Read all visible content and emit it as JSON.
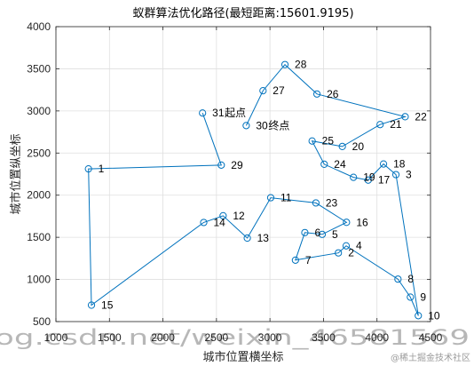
{
  "chart_data": {
    "type": "line",
    "title": "蚁群算法优化路径(最短距离:15601.9195)",
    "xlabel": "城市位置横坐标",
    "ylabel": "城市位置纵坐标",
    "xlim": [
      1000,
      4500
    ],
    "ylim": [
      500,
      4000
    ],
    "xticks": [
      1000,
      1500,
      2000,
      2500,
      3000,
      3500,
      4000,
      4500
    ],
    "yticks": [
      500,
      1000,
      1500,
      2000,
      2500,
      3000,
      3500,
      4000
    ],
    "grid": true,
    "line_color": "#0072BD",
    "marker": "circle",
    "cities": [
      {
        "id": "1",
        "x": 1304,
        "y": 2312
      },
      {
        "id": "2",
        "x": 3639,
        "y": 1315
      },
      {
        "id": "3",
        "x": 4177,
        "y": 2244
      },
      {
        "id": "4",
        "x": 3712,
        "y": 1399
      },
      {
        "id": "5",
        "x": 3488,
        "y": 1535
      },
      {
        "id": "6",
        "x": 3326,
        "y": 1556
      },
      {
        "id": "7",
        "x": 3238,
        "y": 1229
      },
      {
        "id": "8",
        "x": 4196,
        "y": 1004
      },
      {
        "id": "9",
        "x": 4312,
        "y": 790
      },
      {
        "id": "10",
        "x": 4386,
        "y": 570
      },
      {
        "id": "11",
        "x": 3007,
        "y": 1970
      },
      {
        "id": "12",
        "x": 2562,
        "y": 1756
      },
      {
        "id": "13",
        "x": 2788,
        "y": 1491
      },
      {
        "id": "14",
        "x": 2381,
        "y": 1676
      },
      {
        "id": "15",
        "x": 1332,
        "y": 695
      },
      {
        "id": "16",
        "x": 3715,
        "y": 1678
      },
      {
        "id": "17",
        "x": 3918,
        "y": 2179
      },
      {
        "id": "18",
        "x": 4061,
        "y": 2370
      },
      {
        "id": "19",
        "x": 3780,
        "y": 2212
      },
      {
        "id": "20",
        "x": 3676,
        "y": 2578
      },
      {
        "id": "21",
        "x": 4029,
        "y": 2838
      },
      {
        "id": "22",
        "x": 4263,
        "y": 2931
      },
      {
        "id": "23",
        "x": 3429,
        "y": 1908
      },
      {
        "id": "24",
        "x": 3507,
        "y": 2367
      },
      {
        "id": "25",
        "x": 3394,
        "y": 2643
      },
      {
        "id": "26",
        "x": 3439,
        "y": 3201
      },
      {
        "id": "27",
        "x": 2935,
        "y": 3240
      },
      {
        "id": "28",
        "x": 3140,
        "y": 3550
      },
      {
        "id": "29",
        "x": 2545,
        "y": 2357
      },
      {
        "id": "30",
        "x": 2778,
        "y": 2826
      },
      {
        "id": "31",
        "x": 2370,
        "y": 2975
      }
    ],
    "route": [
      "31",
      "29",
      "1",
      "15",
      "14",
      "12",
      "13",
      "11",
      "23",
      "16",
      "5",
      "6",
      "7",
      "2",
      "4",
      "8",
      "9",
      "10",
      "3",
      "18",
      "17",
      "19",
      "24",
      "25",
      "20",
      "21",
      "22",
      "26",
      "28",
      "27",
      "30"
    ],
    "annotations": [
      {
        "text": "起点",
        "city": "31"
      },
      {
        "text": "终点",
        "city": "30"
      }
    ]
  },
  "watermark": {
    "text": "og.csdn.net/weixin_46581569"
  },
  "credit": {
    "text": "@稀土掘金技术社区"
  }
}
